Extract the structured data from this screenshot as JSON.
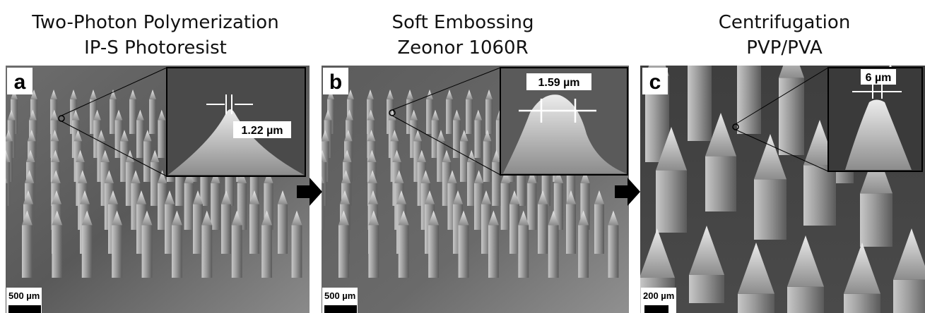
{
  "panels": [
    {
      "title": [
        "Two-Photon Polymerization",
        "IP-S Photoresist"
      ],
      "label": "a",
      "measurement": "1.22 µm",
      "scale_bar": "500 µm"
    },
    {
      "title": [
        "Soft Embossing",
        "Zeonor 1060R"
      ],
      "label": "b",
      "measurement": "1.59 µm",
      "scale_bar": "500 µm"
    },
    {
      "title": [
        "Centrifugation",
        "PVP/PVA"
      ],
      "label": "c",
      "measurement": "6 µm",
      "scale_bar": "200 µm"
    }
  ]
}
